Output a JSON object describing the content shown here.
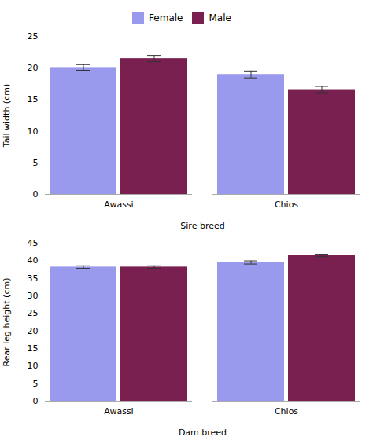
{
  "chart_data": [
    {
      "type": "bar",
      "xlabel": "Sire breed",
      "ylabel": "Tail width (cm)",
      "categories": [
        "Awassi",
        "Chios"
      ],
      "series": [
        {
          "name": "Female",
          "color": "#9999EE",
          "values": [
            20.1,
            19.0
          ],
          "errors": [
            0.45,
            0.55
          ]
        },
        {
          "name": "Male",
          "color": "#7A2050",
          "values": [
            21.5,
            16.6
          ],
          "errors": [
            0.5,
            0.5
          ]
        }
      ],
      "ylim": [
        0,
        25
      ],
      "yticks": [
        0,
        5,
        10,
        15,
        20,
        25
      ],
      "grid": false,
      "legend": "top"
    },
    {
      "type": "bar",
      "xlabel": "Dam breed",
      "ylabel": "Rear leg height (cm)",
      "categories": [
        "Awassi",
        "Chios"
      ],
      "series": [
        {
          "name": "Female",
          "color": "#9999EE",
          "values": [
            38.2,
            39.5
          ],
          "errors": [
            0.35,
            0.45
          ]
        },
        {
          "name": "Male",
          "color": "#7A2050",
          "values": [
            38.2,
            41.5
          ],
          "errors": [
            0.35,
            0.35
          ]
        }
      ],
      "ylim": [
        0,
        45
      ],
      "yticks": [
        0,
        5,
        10,
        15,
        20,
        25,
        30,
        35,
        40,
        45
      ],
      "grid": false
    }
  ]
}
